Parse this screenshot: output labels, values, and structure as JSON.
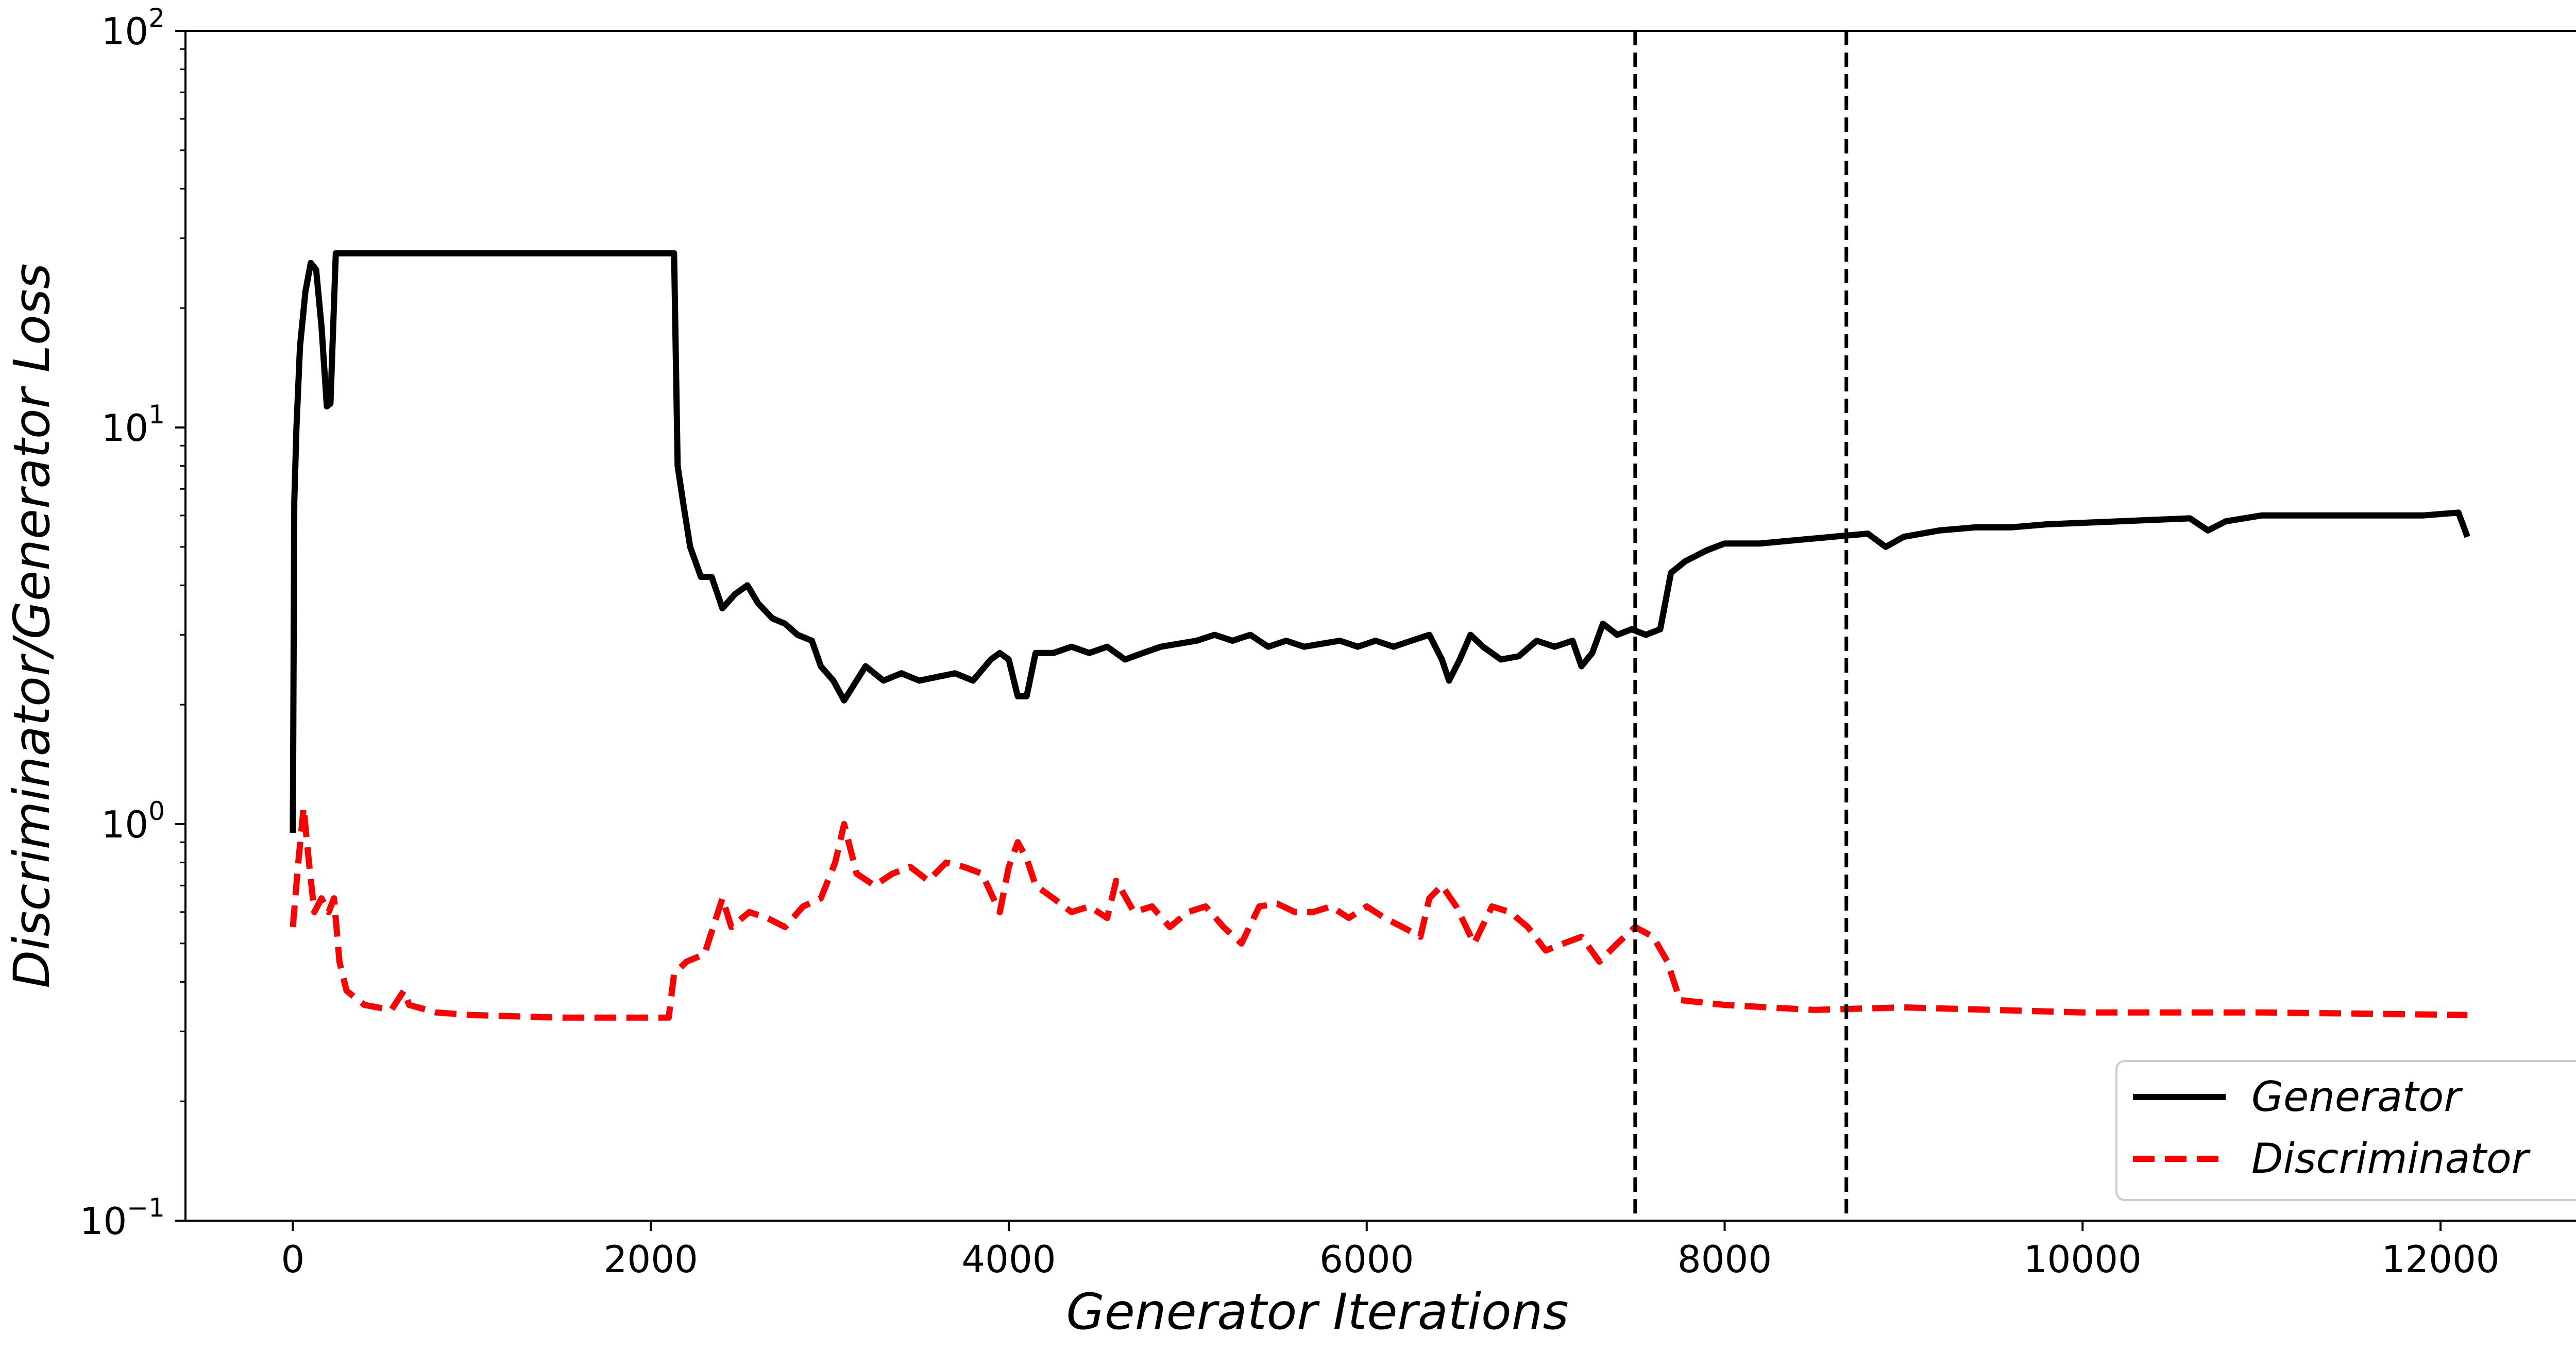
{
  "chart_data": {
    "type": "line",
    "xlabel": "Generator Iterations",
    "ylabel": "Discriminator/Generator Loss",
    "yscale": "log",
    "xlim": [
      -600,
      12800
    ],
    "ylim": [
      0.1,
      100
    ],
    "x_ticks": [
      0,
      2000,
      4000,
      6000,
      8000,
      10000,
      12000
    ],
    "x_tick_labels": [
      "0",
      "2000",
      "4000",
      "6000",
      "8000",
      "10000",
      "12000"
    ],
    "y_ticks": [
      {
        "value": 0.1,
        "base": "10",
        "exp": "−1"
      },
      {
        "value": 1,
        "base": "10",
        "exp": "0"
      },
      {
        "value": 10,
        "base": "10",
        "exp": "1"
      },
      {
        "value": 100,
        "base": "10",
        "exp": "2"
      }
    ],
    "vlines": [
      7500,
      8680
    ],
    "grid": false,
    "legend_position": "lower-right",
    "series": [
      {
        "name": "Generator",
        "color": "#000000",
        "style": "solid",
        "points": [
          [
            0,
            0.95
          ],
          [
            8,
            6.5
          ],
          [
            20,
            10
          ],
          [
            40,
            16
          ],
          [
            70,
            22
          ],
          [
            100,
            26
          ],
          [
            130,
            25
          ],
          [
            160,
            18
          ],
          [
            190,
            11.3
          ],
          [
            210,
            11.5
          ],
          [
            240,
            27.5
          ],
          [
            1000,
            27.5
          ],
          [
            2130,
            27.5
          ],
          [
            2150,
            8
          ],
          [
            2180,
            6.5
          ],
          [
            2220,
            5
          ],
          [
            2280,
            4.2
          ],
          [
            2340,
            4.2
          ],
          [
            2400,
            3.5
          ],
          [
            2470,
            3.8
          ],
          [
            2540,
            4.0
          ],
          [
            2600,
            3.6
          ],
          [
            2680,
            3.3
          ],
          [
            2750,
            3.2
          ],
          [
            2820,
            3.0
          ],
          [
            2900,
            2.9
          ],
          [
            2950,
            2.5
          ],
          [
            3020,
            2.3
          ],
          [
            3080,
            2.05
          ],
          [
            3150,
            2.3
          ],
          [
            3200,
            2.5
          ],
          [
            3300,
            2.3
          ],
          [
            3400,
            2.4
          ],
          [
            3500,
            2.3
          ],
          [
            3600,
            2.35
          ],
          [
            3700,
            2.4
          ],
          [
            3800,
            2.3
          ],
          [
            3900,
            2.6
          ],
          [
            3950,
            2.7
          ],
          [
            4000,
            2.6
          ],
          [
            4050,
            2.1
          ],
          [
            4100,
            2.1
          ],
          [
            4150,
            2.7
          ],
          [
            4250,
            2.7
          ],
          [
            4350,
            2.8
          ],
          [
            4450,
            2.7
          ],
          [
            4550,
            2.8
          ],
          [
            4650,
            2.6
          ],
          [
            4750,
            2.7
          ],
          [
            4850,
            2.8
          ],
          [
            4950,
            2.85
          ],
          [
            5050,
            2.9
          ],
          [
            5150,
            3.0
          ],
          [
            5250,
            2.9
          ],
          [
            5350,
            3.0
          ],
          [
            5450,
            2.8
          ],
          [
            5550,
            2.9
          ],
          [
            5650,
            2.8
          ],
          [
            5750,
            2.85
          ],
          [
            5850,
            2.9
          ],
          [
            5950,
            2.8
          ],
          [
            6050,
            2.9
          ],
          [
            6150,
            2.8
          ],
          [
            6250,
            2.9
          ],
          [
            6350,
            3.0
          ],
          [
            6420,
            2.6
          ],
          [
            6460,
            2.3
          ],
          [
            6520,
            2.6
          ],
          [
            6580,
            3.0
          ],
          [
            6650,
            2.8
          ],
          [
            6750,
            2.6
          ],
          [
            6850,
            2.65
          ],
          [
            6950,
            2.9
          ],
          [
            7050,
            2.8
          ],
          [
            7150,
            2.9
          ],
          [
            7200,
            2.5
          ],
          [
            7260,
            2.7
          ],
          [
            7320,
            3.2
          ],
          [
            7400,
            3.0
          ],
          [
            7480,
            3.1
          ],
          [
            7560,
            3.0
          ],
          [
            7640,
            3.1
          ],
          [
            7700,
            4.3
          ],
          [
            7780,
            4.6
          ],
          [
            7900,
            4.9
          ],
          [
            8000,
            5.1
          ],
          [
            8200,
            5.1
          ],
          [
            8400,
            5.2
          ],
          [
            8600,
            5.3
          ],
          [
            8800,
            5.4
          ],
          [
            8900,
            5.0
          ],
          [
            9000,
            5.3
          ],
          [
            9200,
            5.5
          ],
          [
            9400,
            5.6
          ],
          [
            9600,
            5.6
          ],
          [
            9800,
            5.7
          ],
          [
            10000,
            5.75
          ],
          [
            10200,
            5.8
          ],
          [
            10400,
            5.85
          ],
          [
            10600,
            5.9
          ],
          [
            10700,
            5.5
          ],
          [
            10800,
            5.8
          ],
          [
            11000,
            6.0
          ],
          [
            11300,
            6.0
          ],
          [
            11600,
            6.0
          ],
          [
            11900,
            6.0
          ],
          [
            12100,
            6.1
          ],
          [
            12150,
            5.3
          ]
        ]
      },
      {
        "name": "Discriminator",
        "color": "#ff0000",
        "style": "dashed",
        "points": [
          [
            0,
            0.55
          ],
          [
            30,
            0.8
          ],
          [
            60,
            1.1
          ],
          [
            90,
            0.8
          ],
          [
            120,
            0.6
          ],
          [
            160,
            0.65
          ],
          [
            200,
            0.6
          ],
          [
            230,
            0.65
          ],
          [
            260,
            0.45
          ],
          [
            300,
            0.38
          ],
          [
            400,
            0.35
          ],
          [
            550,
            0.34
          ],
          [
            620,
            0.38
          ],
          [
            650,
            0.35
          ],
          [
            800,
            0.335
          ],
          [
            1000,
            0.33
          ],
          [
            1500,
            0.325
          ],
          [
            2100,
            0.325
          ],
          [
            2130,
            0.42
          ],
          [
            2200,
            0.45
          ],
          [
            2300,
            0.47
          ],
          [
            2400,
            0.65
          ],
          [
            2450,
            0.55
          ],
          [
            2550,
            0.6
          ],
          [
            2650,
            0.58
          ],
          [
            2750,
            0.55
          ],
          [
            2850,
            0.62
          ],
          [
            2950,
            0.65
          ],
          [
            3030,
            0.8
          ],
          [
            3080,
            1.0
          ],
          [
            3150,
            0.75
          ],
          [
            3250,
            0.7
          ],
          [
            3350,
            0.75
          ],
          [
            3450,
            0.78
          ],
          [
            3550,
            0.72
          ],
          [
            3650,
            0.8
          ],
          [
            3750,
            0.78
          ],
          [
            3850,
            0.75
          ],
          [
            3950,
            0.6
          ],
          [
            4000,
            0.78
          ],
          [
            4050,
            0.9
          ],
          [
            4100,
            0.82
          ],
          [
            4150,
            0.7
          ],
          [
            4250,
            0.65
          ],
          [
            4350,
            0.6
          ],
          [
            4450,
            0.62
          ],
          [
            4550,
            0.58
          ],
          [
            4600,
            0.72
          ],
          [
            4700,
            0.6
          ],
          [
            4800,
            0.62
          ],
          [
            4900,
            0.55
          ],
          [
            5000,
            0.6
          ],
          [
            5100,
            0.62
          ],
          [
            5200,
            0.55
          ],
          [
            5300,
            0.5
          ],
          [
            5400,
            0.62
          ],
          [
            5500,
            0.63
          ],
          [
            5600,
            0.6
          ],
          [
            5700,
            0.6
          ],
          [
            5800,
            0.62
          ],
          [
            5900,
            0.58
          ],
          [
            6000,
            0.62
          ],
          [
            6100,
            0.58
          ],
          [
            6200,
            0.55
          ],
          [
            6300,
            0.52
          ],
          [
            6350,
            0.65
          ],
          [
            6420,
            0.7
          ],
          [
            6500,
            0.62
          ],
          [
            6600,
            0.5
          ],
          [
            6700,
            0.62
          ],
          [
            6800,
            0.6
          ],
          [
            6900,
            0.55
          ],
          [
            7000,
            0.48
          ],
          [
            7100,
            0.5
          ],
          [
            7200,
            0.52
          ],
          [
            7300,
            0.45
          ],
          [
            7400,
            0.5
          ],
          [
            7500,
            0.55
          ],
          [
            7600,
            0.52
          ],
          [
            7680,
            0.45
          ],
          [
            7750,
            0.36
          ],
          [
            8000,
            0.35
          ],
          [
            8500,
            0.34
          ],
          [
            9000,
            0.345
          ],
          [
            9500,
            0.34
          ],
          [
            10000,
            0.335
          ],
          [
            10500,
            0.335
          ],
          [
            11000,
            0.335
          ],
          [
            11500,
            0.333
          ],
          [
            12150,
            0.33
          ]
        ]
      }
    ]
  }
}
